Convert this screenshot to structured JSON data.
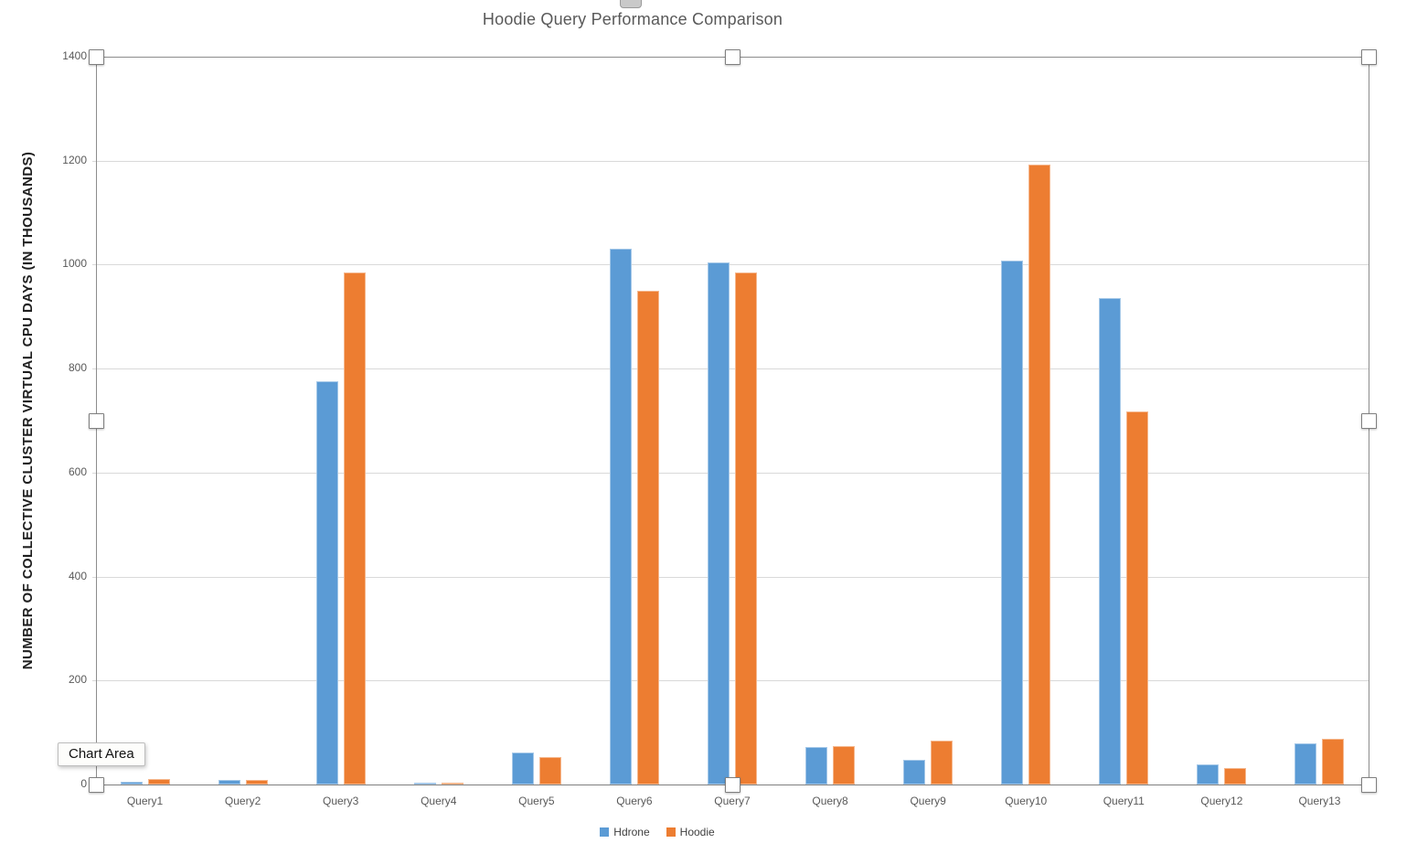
{
  "chart_data": {
    "type": "bar",
    "title": "Hoodie Query Performance Comparison",
    "xlabel": "",
    "ylabel": "NUMBER OF COLLECTIVE CLUSTER VIRTUAL CPU DAYS (IN THOUSANDS)",
    "categories": [
      "Query1",
      "Query2",
      "Query3",
      "Query4",
      "Query5",
      "Query6",
      "Query7",
      "Query8",
      "Query9",
      "Query10",
      "Query11",
      "Query12",
      "Query13"
    ],
    "series": [
      {
        "name": "Hdrone",
        "color": "#5B9BD5",
        "values": [
          6,
          9,
          775,
          4,
          62,
          1030,
          1005,
          72,
          47,
          1008,
          935,
          39,
          79
        ]
      },
      {
        "name": "Hoodie",
        "color": "#ED7D31",
        "values": [
          10,
          9,
          985,
          4,
          52,
          950,
          985,
          73,
          84,
          1193,
          718,
          32,
          88
        ]
      }
    ],
    "ylim": [
      0,
      1400
    ],
    "yticks": [
      0,
      200,
      400,
      600,
      800,
      1000,
      1200,
      1400
    ],
    "grid": "horizontal",
    "legend_position": "bottom"
  },
  "tooltip": {
    "label": "Chart Area"
  },
  "colors": {
    "series_hdrone": "#5B9BD5",
    "series_hoodie": "#ED7D31",
    "gridline": "#D9D9D9",
    "axis_line": "#7F7F7F",
    "tick_text": "#595959",
    "title_text": "#595959"
  }
}
